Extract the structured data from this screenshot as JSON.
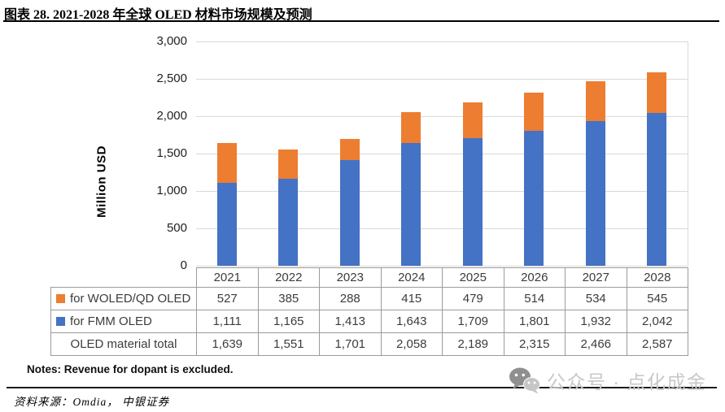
{
  "title": "图表 28. 2021-2028 年全球 OLED 材料市场规模及预测",
  "chart_data": {
    "type": "bar",
    "stacked": true,
    "ylabel": "Million USD",
    "ylim": [
      0,
      3000
    ],
    "ytick_step": 500,
    "ytick_labels": [
      "3,000",
      "2,500",
      "2,000",
      "1,500",
      "1,000",
      "500",
      "0"
    ],
    "grid": true,
    "legend_position": "table-left",
    "categories": [
      "2021",
      "2022",
      "2023",
      "2024",
      "2025",
      "2026",
      "2027",
      "2028"
    ],
    "series": [
      {
        "name": "for WOLED/QD OLED",
        "color": "#ED7D31",
        "values": [
          527,
          385,
          288,
          415,
          479,
          514,
          534,
          545
        ]
      },
      {
        "name": "for FMM OLED",
        "color": "#4472C4",
        "values": [
          1111,
          1165,
          1413,
          1643,
          1709,
          1801,
          1932,
          2042
        ]
      }
    ],
    "totals": {
      "label": "OLED material total",
      "values": [
        1639,
        1551,
        1701,
        2058,
        2189,
        2315,
        2466,
        2587
      ]
    }
  },
  "notes": "Notes: Revenue for dopant is excluded.",
  "source": "资料来源：Omdia， 中银证券",
  "watermark": {
    "icon": "wechat-public-account-icon",
    "text": "公众号 · 点化成金"
  }
}
